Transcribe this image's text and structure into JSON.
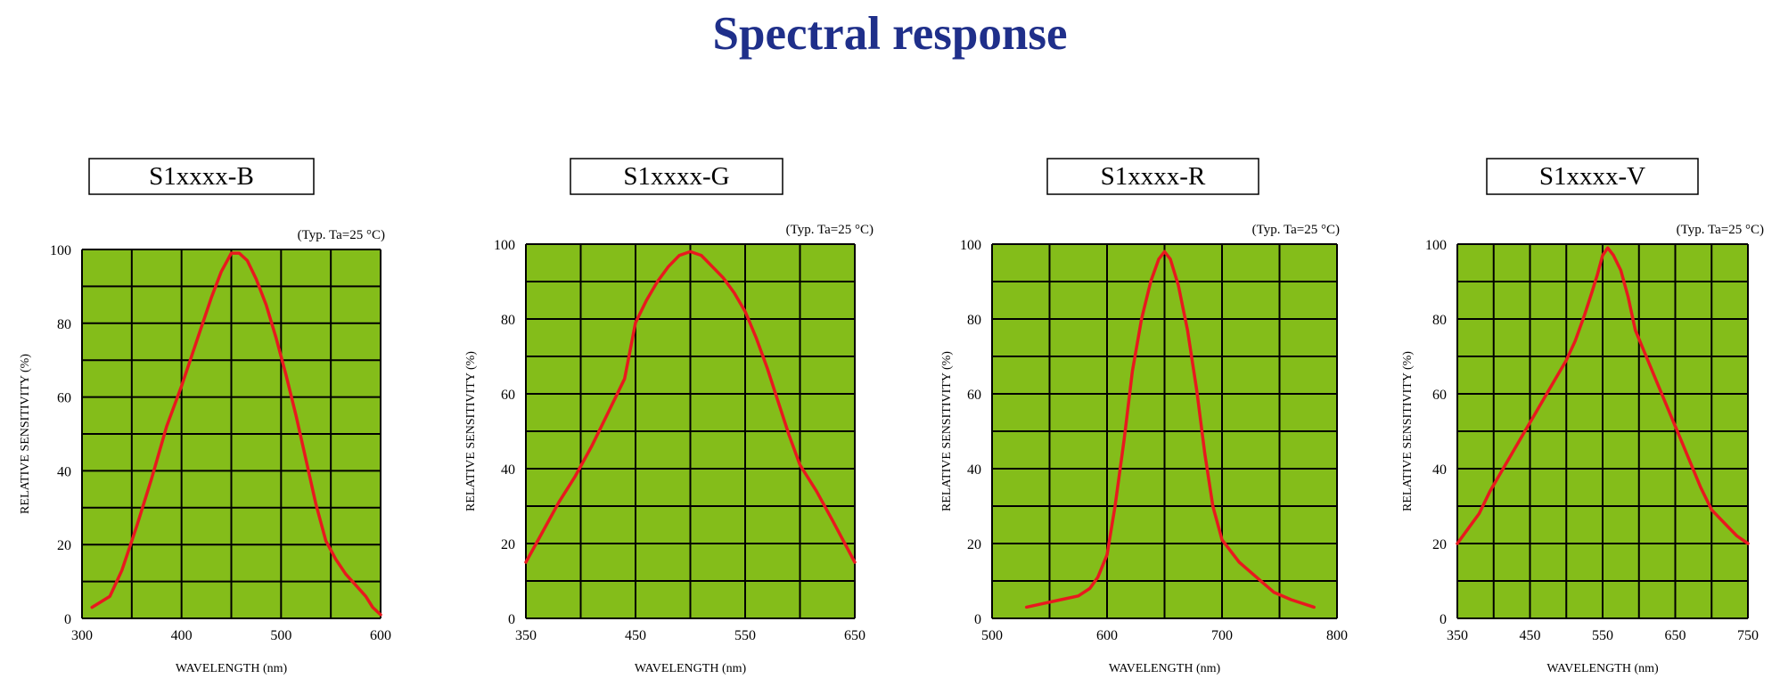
{
  "title": "Spectral response",
  "colors": {
    "title": "#1f2f8a",
    "plot_bg": "#84bd1a",
    "grid": "#000000",
    "curve": "#e8191e",
    "label_box": "#ffffff"
  },
  "chart_data": [
    {
      "type": "line",
      "label": "S1xxxx-B",
      "note": "(Typ. Ta=25 °C)",
      "xlabel": "WAVELENGTH (nm)",
      "ylabel": "RELATIVE SENSITIVITY (%)",
      "xlim": [
        300,
        600
      ],
      "ylim": [
        0,
        100
      ],
      "xticks": [
        300,
        400,
        500,
        600
      ],
      "yticks": [
        0,
        20,
        40,
        60,
        80,
        100
      ],
      "grid": {
        "vertical": 6,
        "horizontal": 10
      },
      "series": [
        {
          "x": [
            310,
            328,
            340,
            355,
            370,
            385,
            400,
            415,
            430,
            440,
            450,
            458,
            466,
            475,
            485,
            495,
            505,
            515,
            525,
            535,
            545,
            555,
            565,
            575,
            585,
            592,
            600
          ],
          "y": [
            3,
            6,
            13,
            25,
            38,
            52,
            63,
            75,
            87,
            94,
            99,
            99,
            97,
            92,
            85,
            76,
            66,
            55,
            43,
            31,
            21,
            16,
            12,
            9,
            6,
            3,
            1
          ]
        }
      ]
    },
    {
      "type": "line",
      "label": "S1xxxx-G",
      "note": "(Typ. Ta=25 °C)",
      "xlabel": "WAVELENGTH (nm)",
      "ylabel": "RELATIVE SENSITIVITY (%)",
      "xlim": [
        350,
        650
      ],
      "ylim": [
        0,
        100
      ],
      "xticks": [
        350,
        450,
        550,
        650
      ],
      "yticks": [
        0,
        20,
        40,
        60,
        80,
        100
      ],
      "grid": {
        "vertical": 6,
        "horizontal": 10
      },
      "series": [
        {
          "x": [
            350,
            365,
            380,
            395,
            410,
            425,
            440,
            450,
            460,
            470,
            480,
            490,
            500,
            510,
            520,
            530,
            540,
            550,
            560,
            570,
            580,
            590,
            600,
            615,
            630,
            650
          ],
          "y": [
            15,
            23,
            31,
            38,
            46,
            55,
            64,
            79,
            85,
            90,
            94,
            97,
            98,
            97,
            94,
            91,
            87,
            82,
            75,
            67,
            58,
            49,
            41,
            34,
            26,
            15
          ]
        }
      ]
    },
    {
      "type": "line",
      "label": "S1xxxx-R",
      "note": "(Typ. Ta=25 °C)",
      "xlabel": "WAVELENGTH (nm)",
      "ylabel": "RELATIVE SENSITIVITY (%)",
      "xlim": [
        500,
        800
      ],
      "ylim": [
        0,
        100
      ],
      "xticks": [
        500,
        600,
        700,
        800
      ],
      "yticks": [
        0,
        20,
        40,
        60,
        80,
        100
      ],
      "grid": {
        "vertical": 6,
        "horizontal": 10
      },
      "series": [
        {
          "x": [
            530,
            545,
            560,
            575,
            585,
            592,
            600,
            607,
            615,
            622,
            630,
            638,
            645,
            650,
            655,
            662,
            670,
            678,
            685,
            692,
            700,
            715,
            730,
            745,
            760,
            780
          ],
          "y": [
            3,
            4,
            5,
            6,
            8,
            11,
            17,
            30,
            48,
            66,
            80,
            90,
            96,
            98,
            96,
            89,
            77,
            61,
            44,
            30,
            21,
            15,
            11,
            7,
            5,
            3
          ]
        }
      ]
    },
    {
      "type": "line",
      "label": "S1xxxx-V",
      "note": "(Typ. Ta=25 °C)",
      "xlabel": "WAVELENGTH (nm)",
      "ylabel": "RELATIVE SENSITIVITY (%)",
      "xlim": [
        350,
        750
      ],
      "ylim": [
        0,
        100
      ],
      "xticks": [
        350,
        450,
        550,
        650,
        750
      ],
      "yticks": [
        0,
        20,
        40,
        60,
        80,
        100
      ],
      "grid": {
        "vertical": 8,
        "horizontal": 10
      },
      "series": [
        {
          "x": [
            350,
            365,
            380,
            395,
            410,
            425,
            440,
            455,
            470,
            485,
            500,
            512,
            525,
            535,
            543,
            550,
            557,
            565,
            575,
            585,
            595,
            610,
            625,
            640,
            655,
            670,
            685,
            700,
            720,
            735,
            750
          ],
          "y": [
            20,
            24,
            28,
            34,
            39,
            44,
            49,
            54,
            59,
            64,
            69,
            74,
            81,
            87,
            92,
            97,
            99,
            97,
            93,
            86,
            77,
            70,
            63,
            56,
            49,
            42,
            35,
            29,
            25,
            22,
            20
          ]
        }
      ]
    }
  ]
}
